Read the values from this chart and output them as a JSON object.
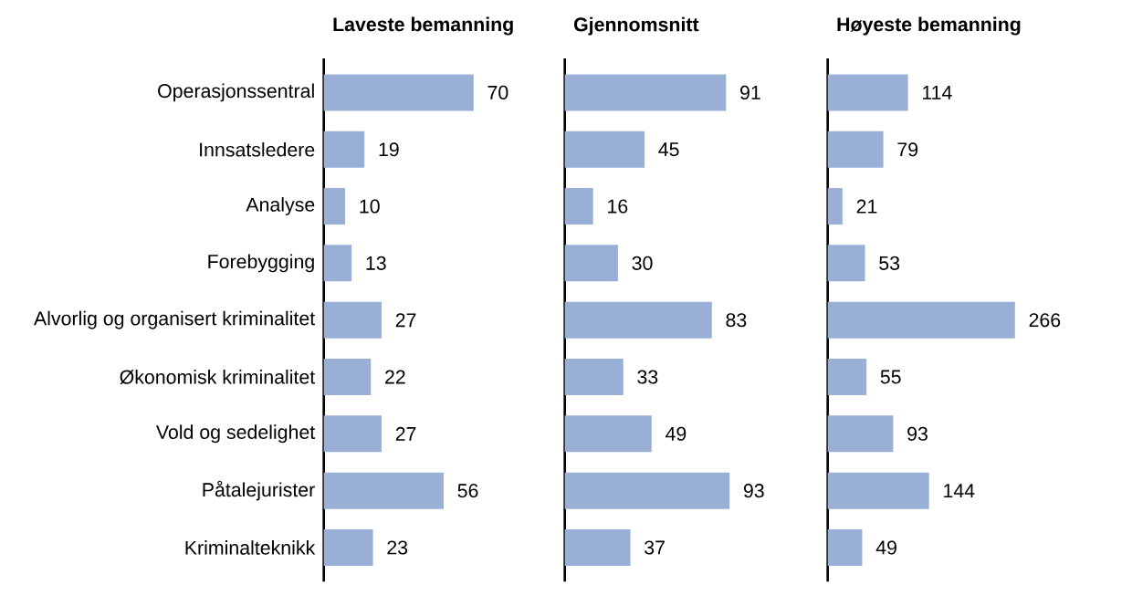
{
  "chart_data": [
    {
      "type": "bar",
      "orientation": "horizontal",
      "title": "Laveste bemanning",
      "categories": [
        "Operasjonssentral",
        "Innsatsledere",
        "Analyse",
        "Forebygging",
        "Alvorlig og organisert kriminalitet",
        "Økonomisk kriminalitet",
        "Vold og sedelighet",
        "Påtalejurister",
        "Kriminalteknikk"
      ],
      "values": [
        70,
        19,
        10,
        13,
        27,
        22,
        27,
        56,
        23
      ],
      "color": "#9aafd6",
      "data_labels": true
    },
    {
      "type": "bar",
      "orientation": "horizontal",
      "title": "Gjennomsnitt",
      "categories": [
        null,
        null,
        null,
        null,
        null,
        null,
        null,
        null,
        null
      ],
      "values": [
        91,
        45,
        16,
        30,
        83,
        33,
        49,
        93,
        37
      ],
      "color": "#9aafd6",
      "data_labels": true
    },
    {
      "type": "bar",
      "orientation": "horizontal",
      "title": "Høyeste bemanning",
      "categories": [
        null,
        null,
        null,
        null,
        null,
        null,
        null,
        null,
        null
      ],
      "values": [
        114,
        79,
        21,
        53,
        266,
        55,
        93,
        144,
        49
      ],
      "color": "#9aafd6",
      "data_labels": true
    }
  ]
}
